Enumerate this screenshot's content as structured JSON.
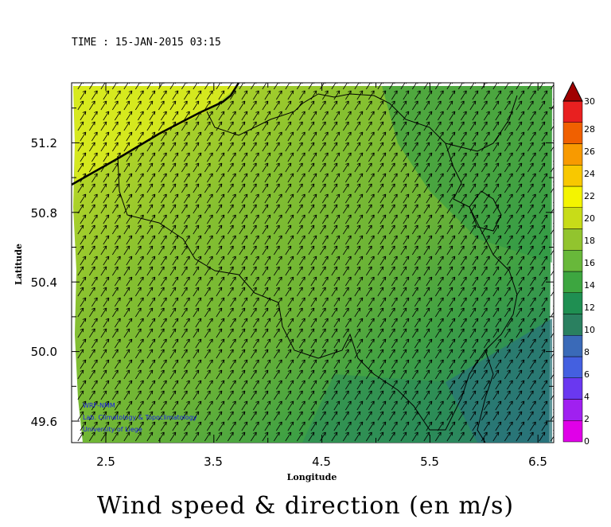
{
  "time_label": "TIME : 15-JAN-2015 03:15",
  "title": "Wind speed & direction (en m/s)",
  "credits": [
    "WRF-NMM",
    "Lab. Climatology & Topoclimatology",
    "University of Liege"
  ],
  "axes": {
    "x_label": "Longitude",
    "y_label": "Latitude",
    "x_ticks": [
      "2.5",
      "3.5",
      "4.5",
      "5.5",
      "6.5"
    ],
    "y_ticks": [
      "49.6",
      "50.0",
      "50.4",
      "50.8",
      "51.2"
    ]
  },
  "colorbar": {
    "labels": [
      "0",
      "2",
      "4",
      "6",
      "8",
      "10",
      "12",
      "14",
      "16",
      "18",
      "20",
      "22",
      "24",
      "26",
      "28",
      "30"
    ],
    "colors": [
      "#e000e8",
      "#a020f0",
      "#6a38f0",
      "#4460e0",
      "#3a6ab8",
      "#2a8060",
      "#1f8f52",
      "#3da640",
      "#68b83a",
      "#92c42e",
      "#c8dc18",
      "#f4f400",
      "#f8c800",
      "#f89a00",
      "#f06000",
      "#e82020",
      "#b00000"
    ]
  },
  "field_colors": {
    "high": "#d2e61e",
    "mid": "#7ebc34",
    "low": "#2e9a48",
    "lowest": "#2a7a74",
    "arrow": "#000000",
    "border": "#000000"
  },
  "icons": [
    "wind-arrow-icon",
    "colorbar-overflow-triangle-icon"
  ]
}
